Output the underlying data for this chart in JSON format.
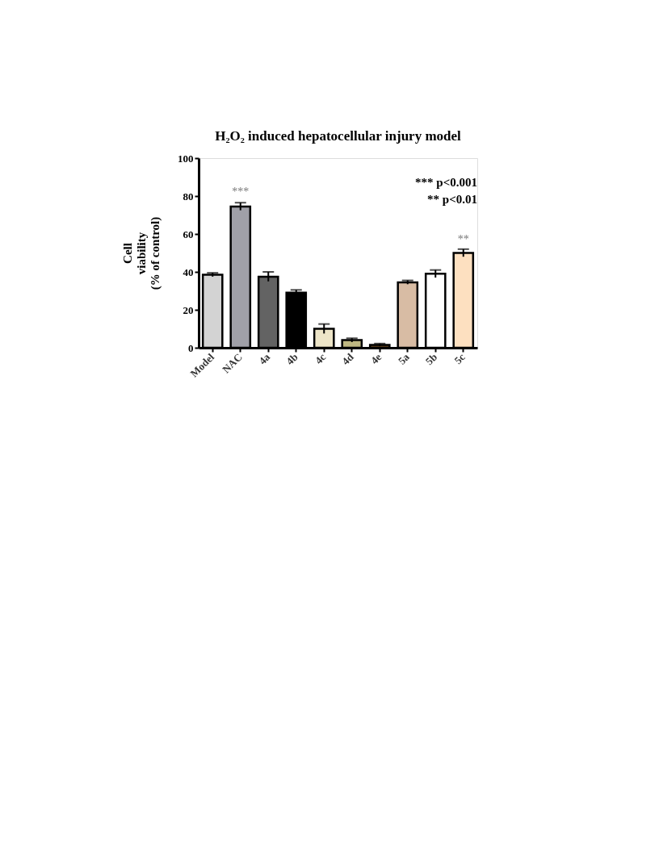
{
  "chart_data": {
    "type": "bar",
    "title": "H₂O₂ induced hepatocellular injury model",
    "ylabel": "Cell\nviability\n(% of control)",
    "categories": [
      "Model",
      "NAC",
      "4a",
      "4b",
      "4c",
      "4d",
      "4e",
      "5a",
      "5b",
      "5c"
    ],
    "values": [
      38.5,
      74.5,
      37.5,
      29,
      10,
      4,
      1.5,
      34.5,
      39,
      50
    ],
    "errors": [
      1,
      2,
      2.5,
      1.5,
      2.5,
      1,
      0.7,
      1,
      2,
      2
    ],
    "colors": [
      "#d3d3d3",
      "#a0a0a8",
      "#636363",
      "#000000",
      "#ede5c8",
      "#bfb882",
      "#6b4a20",
      "#d8bca4",
      "#ffffff",
      "#fde0c0"
    ],
    "ylim": [
      0,
      100
    ],
    "yticks": [
      0,
      20,
      40,
      60,
      80,
      100
    ],
    "grid": false,
    "annotations": [
      {
        "text": "***",
        "x": "NAC",
        "y": 79
      },
      {
        "text": "**",
        "x": "5c",
        "y": 54
      },
      "*** p<0.001",
      "** p<0.01"
    ]
  }
}
